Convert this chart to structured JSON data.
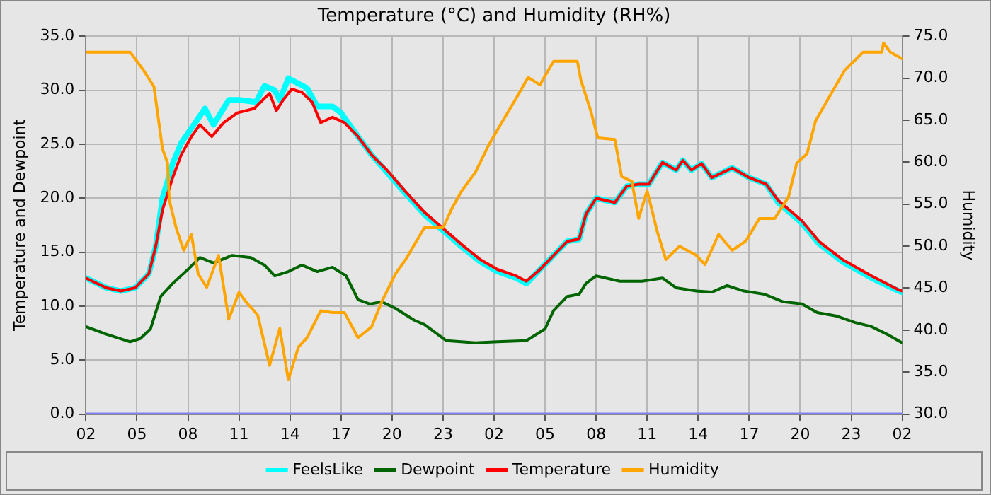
{
  "chart_data": {
    "type": "line",
    "title": "Temperature (°C) and Humidity (RH%)",
    "ylabel": "Temperature and Dewpoint",
    "y2label": "Humidity",
    "xlim": [
      "--01-01T02:00",
      "--01-03T02:00"
    ],
    "xticks": [
      {
        "value": "--01-01T02:00",
        "label": "02"
      },
      {
        "value": "--01-01T05:00",
        "label": "05"
      },
      {
        "value": "--01-01T08:00",
        "label": "08"
      },
      {
        "value": "--01-01T11:00",
        "label": "11"
      },
      {
        "value": "--01-01T14:00",
        "label": "14"
      },
      {
        "value": "--01-01T17:00",
        "label": "17"
      },
      {
        "value": "--01-01T20:00",
        "label": "20"
      },
      {
        "value": "--01-01T23:00",
        "label": "23"
      },
      {
        "value": "--01-02T02:00",
        "label": "02"
      },
      {
        "value": "--01-02T05:00",
        "label": "05"
      },
      {
        "value": "--01-02T08:00",
        "label": "08"
      },
      {
        "value": "--01-02T11:00",
        "label": "11"
      },
      {
        "value": "--01-02T14:00",
        "label": "14"
      },
      {
        "value": "--01-02T17:00",
        "label": "17"
      },
      {
        "value": "--01-02T20:00",
        "label": "20"
      },
      {
        "value": "--01-02T23:00",
        "label": "23"
      },
      {
        "value": "--01-03T02:00",
        "label": "02"
      }
    ],
    "ylim": [
      0,
      35
    ],
    "yticks": [
      {
        "value": 0,
        "label": "0.0"
      },
      {
        "value": 5,
        "label": "5.0"
      },
      {
        "value": 10,
        "label": "10.0"
      },
      {
        "value": 15,
        "label": "15.0"
      },
      {
        "value": 20,
        "label": "20.0"
      },
      {
        "value": 25,
        "label": "25.0"
      },
      {
        "value": 30,
        "label": "30.0"
      },
      {
        "value": 35,
        "label": "35.0"
      }
    ],
    "y2lim": [
      30,
      75
    ],
    "y2ticks": [
      {
        "value": 30,
        "label": "30.0"
      },
      {
        "value": 35,
        "label": "35.0"
      },
      {
        "value": 40,
        "label": "40.0"
      },
      {
        "value": 45,
        "label": "45.0"
      },
      {
        "value": 50,
        "label": "50.0"
      },
      {
        "value": 55,
        "label": "55.0"
      },
      {
        "value": 60,
        "label": "60.0"
      },
      {
        "value": 65,
        "label": "65.0"
      },
      {
        "value": 70,
        "label": "70.0"
      },
      {
        "value": 75,
        "label": "75.0"
      }
    ],
    "grid": true,
    "legend": "bottom",
    "marker": "none",
    "line_style": "solid",
    "series": [
      {
        "name": "FeelsLike",
        "color": "#00ffff",
        "x": [
          "--01-01T02:00",
          "--01-01T03:12",
          "--01-01T04:03",
          "--01-01T04:54",
          "--01-01T05:42",
          "--01-01T06:06",
          "--01-01T06:30",
          "--01-01T07:06",
          "--01-01T07:36",
          "--01-01T09:00",
          "--01-01T09:30",
          "--01-01T10:24",
          "--01-01T11:00",
          "--01-01T12:00",
          "--01-01T12:30",
          "--01-01T13:06",
          "--01-01T13:24",
          "--01-01T13:54",
          "--01-01T15:00",
          "--01-01T15:36",
          "--01-01T16:30",
          "--01-01T17:00",
          "--01-01T18:00",
          "--01-01T18:48",
          "--01-01T19:42",
          "--01-01T20:48",
          "--01-01T21:54",
          "--01-01T23:00",
          "--01-02T00:06",
          "--01-02T01:12",
          "--01-02T02:12",
          "--01-02T03:18",
          "--01-02T03:54",
          "--01-02T04:42",
          "--01-02T05:30",
          "--01-02T06:18",
          "--01-02T07:00",
          "--01-02T07:24",
          "--01-02T08:00",
          "--01-02T09:06",
          "--01-02T09:48",
          "--01-02T10:30",
          "--01-02T11:06",
          "--01-02T11:54",
          "--01-02T12:42",
          "--01-02T13:06",
          "--01-02T13:36",
          "--01-02T14:12",
          "--01-02T14:48",
          "--01-02T16:00",
          "--01-02T17:00",
          "--01-02T18:00",
          "--01-02T18:42",
          "--01-02T20:06",
          "--01-02T21:06",
          "--01-02T22:30",
          "--01-03T00:12",
          "--01-03T01:48",
          "--01-03T02:00"
        ],
        "values": [
          12.6,
          11.7,
          11.4,
          11.7,
          13.0,
          15.5,
          20.0,
          23.2,
          25.1,
          28.3,
          26.8,
          29.1,
          29.1,
          28.9,
          30.4,
          30.0,
          29.1,
          31.1,
          30.2,
          28.5,
          28.5,
          27.9,
          25.7,
          24.0,
          22.4,
          20.4,
          18.5,
          17.0,
          15.5,
          14.1,
          13.2,
          12.6,
          12.1,
          13.4,
          14.7,
          16.0,
          16.2,
          18.5,
          20.0,
          19.6,
          21.1,
          21.3,
          21.3,
          23.3,
          22.6,
          23.5,
          22.6,
          23.2,
          21.9,
          22.8,
          21.9,
          21.3,
          19.6,
          17.7,
          15.8,
          14.1,
          12.6,
          11.4,
          11.3
        ]
      },
      {
        "name": "Dewpoint",
        "color": "#006400",
        "x": [
          "--01-01T02:00",
          "--01-01T03:12",
          "--01-01T04:36",
          "--01-01T05:12",
          "--01-01T05:48",
          "--01-01T06:24",
          "--01-01T07:06",
          "--01-01T08:00",
          "--01-01T08:42",
          "--01-01T09:30",
          "--01-01T10:36",
          "--01-01T11:42",
          "--01-01T12:30",
          "--01-01T13:06",
          "--01-01T13:54",
          "--01-01T14:42",
          "--01-01T15:36",
          "--01-01T16:30",
          "--01-01T17:18",
          "--01-01T18:00",
          "--01-01T18:42",
          "--01-01T19:24",
          "--01-01T20:12",
          "--01-01T21:18",
          "--01-01T21:54",
          "--01-01T23:12",
          "--01-02T00:54",
          "--01-02T02:12",
          "--01-02T03:54",
          "--01-02T05:00",
          "--01-02T05:30",
          "--01-02T06:18",
          "--01-02T07:00",
          "--01-02T07:24",
          "--01-02T08:00",
          "--01-02T09:24",
          "--01-02T10:42",
          "--01-02T11:54",
          "--01-02T12:42",
          "--01-02T13:54",
          "--01-02T14:48",
          "--01-02T15:42",
          "--01-02T16:42",
          "--01-02T17:54",
          "--01-02T19:00",
          "--01-02T20:06",
          "--01-02T21:00",
          "--01-02T22:06",
          "--01-02T23:12",
          "--01-03T00:12",
          "--01-03T01:06",
          "--01-03T02:00"
        ],
        "values": [
          8.1,
          7.4,
          6.7,
          7.0,
          7.9,
          10.9,
          12.1,
          13.4,
          14.5,
          14.0,
          14.7,
          14.5,
          13.8,
          12.8,
          13.2,
          13.8,
          13.2,
          13.6,
          12.8,
          10.6,
          10.2,
          10.4,
          9.8,
          8.7,
          8.3,
          6.8,
          6.6,
          6.7,
          6.8,
          7.9,
          9.6,
          10.9,
          11.1,
          12.1,
          12.8,
          12.3,
          12.3,
          12.6,
          11.7,
          11.4,
          11.3,
          11.9,
          11.4,
          11.1,
          10.4,
          10.2,
          9.4,
          9.1,
          8.5,
          8.1,
          7.4,
          6.6
        ]
      },
      {
        "name": "Temperature",
        "color": "#ff0000",
        "x": [
          "--01-01T02:00",
          "--01-01T03:12",
          "--01-01T04:03",
          "--01-01T04:54",
          "--01-01T05:42",
          "--01-01T06:06",
          "--01-01T06:30",
          "--01-01T07:06",
          "--01-01T07:36",
          "--01-01T08:12",
          "--01-01T08:42",
          "--01-01T09:24",
          "--01-01T10:06",
          "--01-01T10:54",
          "--01-01T11:54",
          "--01-01T12:24",
          "--01-01T12:48",
          "--01-01T13:12",
          "--01-01T13:36",
          "--01-01T14:06",
          "--01-01T14:42",
          "--01-01T15:18",
          "--01-01T15:48",
          "--01-01T16:30",
          "--01-01T17:12",
          "--01-01T18:00",
          "--01-01T18:48",
          "--01-01T19:42",
          "--01-01T20:48",
          "--01-01T21:54",
          "--01-01T23:00",
          "--01-02T00:06",
          "--01-02T01:12",
          "--01-02T02:12",
          "--01-02T03:18",
          "--01-02T03:54",
          "--01-02T04:42",
          "--01-02T05:30",
          "--01-02T06:18",
          "--01-02T07:00",
          "--01-02T07:24",
          "--01-02T08:00",
          "--01-02T09:06",
          "--01-02T09:48",
          "--01-02T10:30",
          "--01-02T11:06",
          "--01-02T11:54",
          "--01-02T12:42",
          "--01-02T13:06",
          "--01-02T13:36",
          "--01-02T14:12",
          "--01-02T14:48",
          "--01-02T16:00",
          "--01-02T17:00",
          "--01-02T18:00",
          "--01-02T18:42",
          "--01-02T20:06",
          "--01-02T21:06",
          "--01-02T22:30",
          "--01-03T00:12",
          "--01-03T01:48",
          "--01-03T02:00"
        ],
        "values": [
          12.6,
          11.7,
          11.4,
          11.7,
          13.0,
          15.5,
          18.9,
          21.9,
          24.0,
          25.7,
          26.8,
          25.7,
          27.0,
          27.9,
          28.3,
          29.1,
          29.7,
          28.1,
          29.1,
          30.1,
          29.8,
          28.9,
          27.0,
          27.5,
          27.0,
          25.7,
          24.0,
          22.6,
          20.6,
          18.7,
          17.2,
          15.7,
          14.3,
          13.4,
          12.8,
          12.3,
          13.4,
          14.7,
          16.0,
          16.2,
          18.5,
          20.0,
          19.6,
          21.1,
          21.3,
          21.3,
          23.3,
          22.6,
          23.5,
          22.6,
          23.2,
          21.9,
          22.8,
          21.9,
          21.3,
          19.8,
          17.9,
          16.0,
          14.3,
          12.8,
          11.5,
          11.4
        ]
      },
      {
        "name": "Humidity",
        "color": "#ffa500",
        "axis": "y2",
        "x": [
          "--01-01T02:00",
          "--01-01T04:36",
          "--01-01T04:54",
          "--01-01T05:24",
          "--01-01T06:00",
          "--01-01T06:30",
          "--01-01T06:48",
          "--01-01T06:54",
          "--01-01T07:18",
          "--01-01T07:45",
          "--01-01T08:12",
          "--01-01T08:36",
          "--01-01T09:06",
          "--01-01T09:48",
          "--01-01T10:24",
          "--01-01T11:00",
          "--01-01T11:24",
          "--01-01T12:06",
          "--01-01T12:48",
          "--01-01T13:24",
          "--01-01T13:54",
          "--01-01T14:30",
          "--01-01T15:00",
          "--01-01T15:48",
          "--01-01T16:30",
          "--01-01T17:12",
          "--01-01T18:00",
          "--01-01T18:48",
          "--01-01T19:24",
          "--01-01T20:12",
          "--01-01T20:48",
          "--01-01T21:54",
          "--01-01T23:00",
          "--01-01T23:30",
          "--01-02T00:06",
          "--01-02T00:54",
          "--01-02T01:42",
          "--01-02T02:30",
          "--01-02T03:18",
          "--01-02T04:00",
          "--01-02T04:42",
          "--01-02T05:00",
          "--01-02T05:30",
          "--01-02T06:54",
          "--01-02T07:06",
          "--01-02T07:42",
          "--01-02T08:06",
          "--01-02T09:06",
          "--01-02T09:30",
          "--01-02T10:06",
          "--01-02T10:30",
          "--01-02T11:00",
          "--01-02T11:36",
          "--01-02T12:06",
          "--01-02T12:54",
          "--01-02T13:54",
          "--01-02T14:24",
          "--01-02T15:12",
          "--01-02T16:00",
          "--01-02T16:48",
          "--01-02T17:36",
          "--01-02T18:30",
          "--01-02T19:18",
          "--01-02T19:48",
          "--01-02T20:24",
          "--01-02T20:54",
          "--01-02T21:48",
          "--01-02T22:36",
          "--01-02T23:42",
          "--01-03T00:48",
          "--01-03T00:54",
          "--01-03T01:18",
          "--01-03T02:00"
        ],
        "values": [
          73.1,
          73.1,
          72.3,
          70.9,
          69.0,
          61.6,
          59.9,
          55.5,
          52.2,
          49.5,
          51.4,
          46.7,
          45.1,
          48.9,
          41.3,
          44.5,
          43.4,
          41.8,
          35.8,
          40.2,
          34.1,
          38.0,
          39.1,
          42.3,
          42.1,
          42.1,
          39.1,
          40.4,
          43.4,
          46.7,
          48.4,
          52.2,
          52.2,
          54.4,
          56.6,
          58.8,
          62.1,
          64.9,
          67.6,
          70.1,
          69.2,
          70.3,
          72.0,
          72.0,
          69.8,
          66.0,
          62.9,
          62.7,
          58.3,
          57.7,
          53.3,
          56.6,
          51.7,
          48.4,
          50.0,
          48.9,
          47.8,
          51.4,
          49.5,
          50.6,
          53.3,
          53.3,
          55.8,
          59.9,
          61.0,
          64.9,
          68.1,
          70.9,
          73.1,
          73.1,
          74.2,
          73.1,
          72.3
        ]
      },
      {
        "color": "#8080ff",
        "x": [
          "--01-01T02:00",
          "--01-03T02:00"
        ],
        "values": [
          0,
          0
        ]
      }
    ]
  }
}
